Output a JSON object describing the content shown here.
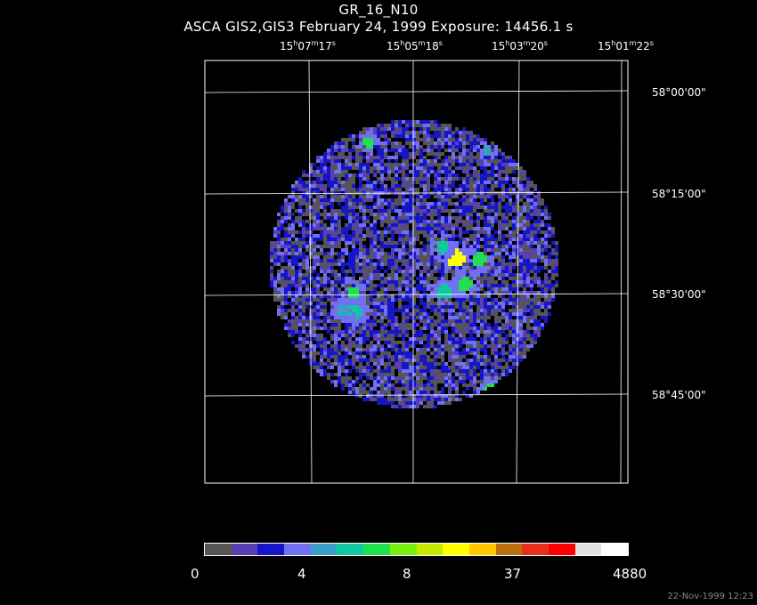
{
  "title": "GR_16_N10",
  "subtitle": "ASCA GIS2,GIS3 February 24, 1999 Exposure: 14456.1 s",
  "ra_labels": [
    {
      "h": "15",
      "m": "07",
      "s": "17"
    },
    {
      "h": "15",
      "m": "05",
      "s": "18"
    },
    {
      "h": "15",
      "m": "03",
      "s": "20"
    },
    {
      "h": "15",
      "m": "01",
      "s": "22"
    }
  ],
  "dec_labels": [
    "58°00'00\"",
    "58°15'00\"",
    "58°30'00\"",
    "58°45'00\""
  ],
  "colorbar": {
    "colors": [
      "#555555",
      "#5a3fb0",
      "#1616c8",
      "#7070f0",
      "#3aa0c8",
      "#10c8a0",
      "#20e050",
      "#78f010",
      "#c8e800",
      "#ffff00",
      "#ffc800",
      "#b87010",
      "#e83018",
      "#ff0000",
      "#e0e0e0",
      "#ffffff"
    ],
    "labels": [
      "0",
      "4",
      "8",
      "37",
      "4880"
    ]
  },
  "timestamp": "22-Nov-1999 12:23"
}
